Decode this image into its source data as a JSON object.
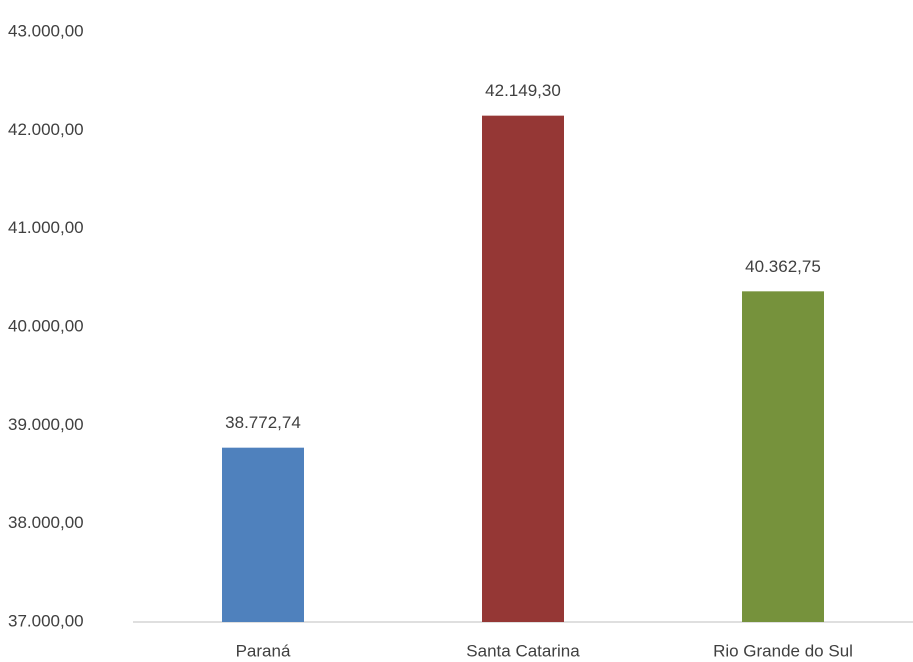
{
  "chart_data": {
    "type": "bar",
    "categories": [
      "Paraná",
      "Santa Catarina",
      "Rio Grande do Sul"
    ],
    "values": [
      38772.74,
      42149.3,
      40362.75
    ],
    "value_labels": [
      "38.772,74",
      "42.149,30",
      "40.362,75"
    ],
    "colors": [
      "#4f81bd",
      "#953735",
      "#76923c"
    ],
    "ylim": [
      37000,
      43000
    ],
    "yticks": [
      {
        "value": 37000,
        "label": "37.000,00"
      },
      {
        "value": 38000,
        "label": "38.000,00"
      },
      {
        "value": 39000,
        "label": "39.000,00"
      },
      {
        "value": 40000,
        "label": "40.000,00"
      },
      {
        "value": 41000,
        "label": "41.000,00"
      },
      {
        "value": 42000,
        "label": "42.000,00"
      },
      {
        "value": 43000,
        "label": "43.000,00"
      }
    ],
    "grid": false
  }
}
